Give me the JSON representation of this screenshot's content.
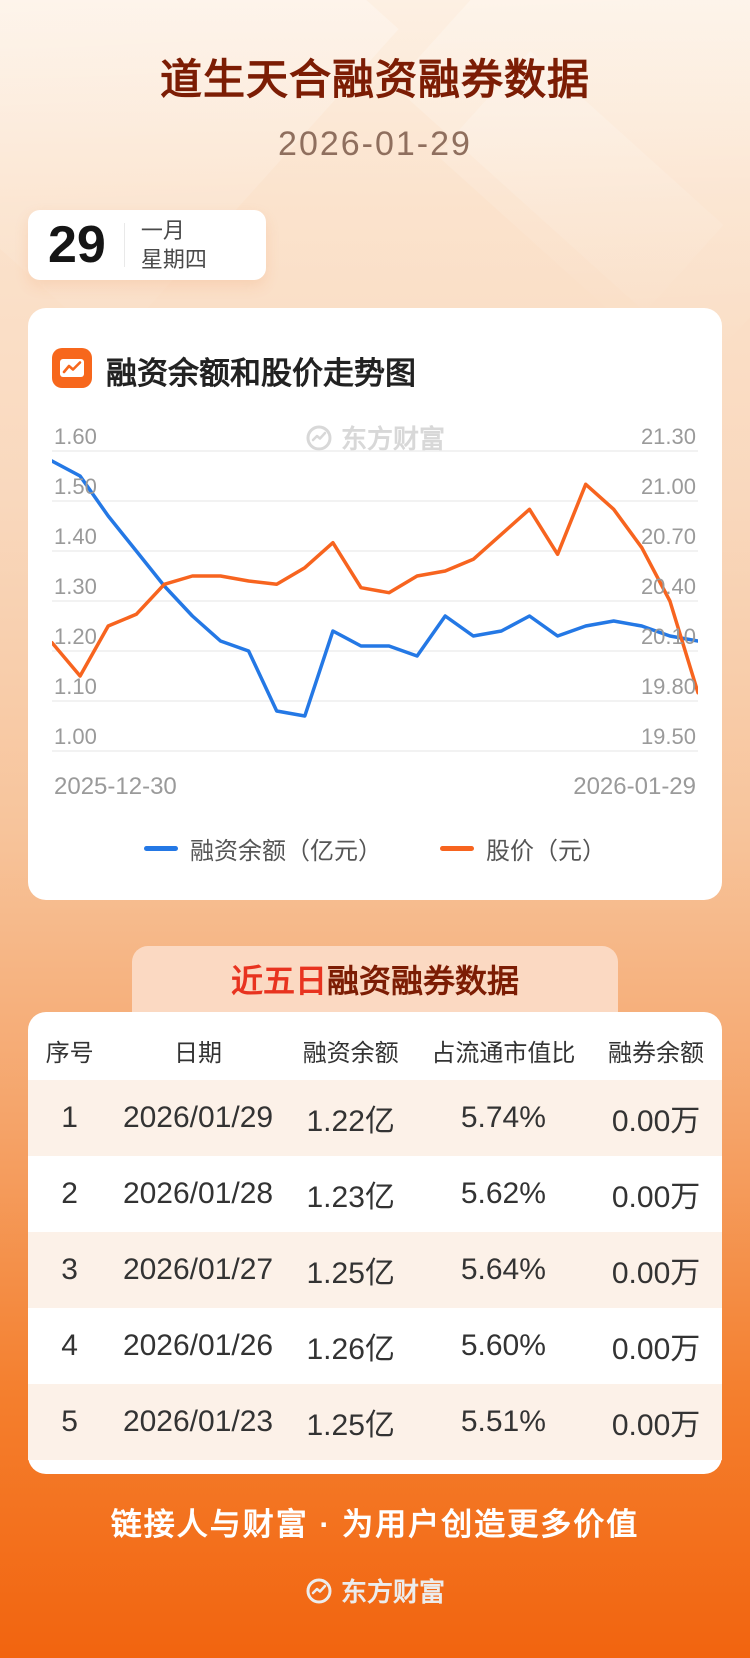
{
  "header": {
    "title": "道生天合融资融券数据",
    "date": "2026-01-29",
    "calendar": {
      "day": "29",
      "month": "一月",
      "weekday": "星期四"
    }
  },
  "chart_section": {
    "title": "融资余额和股价走势图",
    "watermark": "东方财富",
    "x_start": "2025-12-30",
    "x_end": "2026-01-29"
  },
  "chart_data": {
    "type": "line",
    "title": "融资余额和股价走势图",
    "x_range_labels": [
      "2025-12-30",
      "2026-01-29"
    ],
    "grid": true,
    "legend_position": "bottom",
    "left_axis": {
      "range": [
        1.0,
        1.6
      ],
      "ticks_desc": [
        "1.60",
        "1.50",
        "1.40",
        "1.30",
        "1.20",
        "1.10",
        "1.00"
      ]
    },
    "right_axis": {
      "range": [
        19.5,
        21.3
      ],
      "ticks_desc": [
        "21.30",
        "21.00",
        "20.70",
        "20.40",
        "20.10",
        "19.80",
        "19.50"
      ]
    },
    "series": [
      {
        "name": "融资余额（亿元）",
        "axis": "left",
        "color": "#2478e5",
        "values": [
          1.58,
          1.55,
          1.47,
          1.4,
          1.33,
          1.27,
          1.22,
          1.2,
          1.08,
          1.07,
          1.24,
          1.21,
          1.21,
          1.19,
          1.27,
          1.23,
          1.24,
          1.27,
          1.23,
          1.25,
          1.26,
          1.25,
          1.23,
          1.22
        ]
      },
      {
        "name": "股价（元）",
        "axis": "right",
        "color": "#f7641f",
        "values": [
          20.15,
          19.95,
          20.25,
          20.32,
          20.5,
          20.55,
          20.55,
          20.52,
          20.5,
          20.6,
          20.75,
          20.48,
          20.45,
          20.55,
          20.58,
          20.65,
          20.8,
          20.95,
          20.68,
          21.1,
          20.95,
          20.72,
          20.4,
          19.85
        ]
      }
    ]
  },
  "table_section": {
    "title_highlight": "近五日",
    "title_rest": "融资融券数据",
    "watermark": "东方财富",
    "columns": [
      "序号",
      "日期",
      "融资余额",
      "占流通市值比",
      "融券余额"
    ],
    "rows": [
      [
        "1",
        "2026/01/29",
        "1.22亿",
        "5.74%",
        "0.00万"
      ],
      [
        "2",
        "2026/01/28",
        "1.23亿",
        "5.62%",
        "0.00万"
      ],
      [
        "3",
        "2026/01/27",
        "1.25亿",
        "5.64%",
        "0.00万"
      ],
      [
        "4",
        "2026/01/26",
        "1.26亿",
        "5.60%",
        "0.00万"
      ],
      [
        "5",
        "2026/01/23",
        "1.25亿",
        "5.51%",
        "0.00万"
      ]
    ]
  },
  "footer": {
    "slogan": "链接人与财富 · 为用户创造更多价值"
  }
}
